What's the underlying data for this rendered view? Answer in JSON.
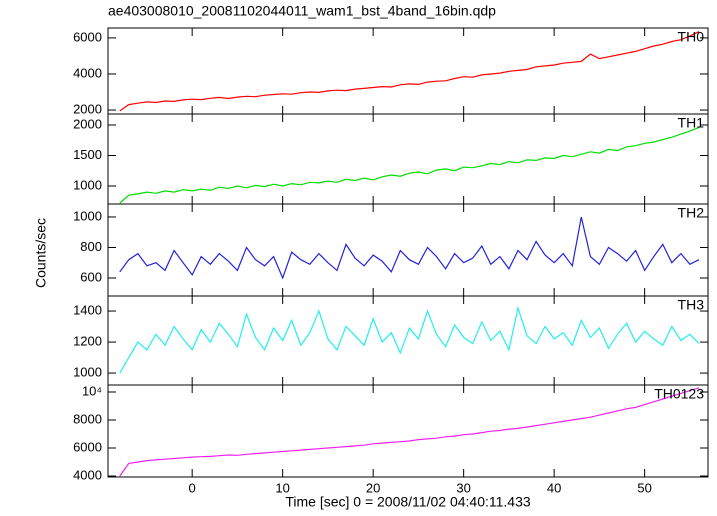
{
  "chart_data": [
    {
      "type": "line",
      "title": "ae403008010_20081102044011_wam1_bst_4band_16bin.qdp",
      "label": "TH0",
      "color": "#ff0000",
      "x": [
        -8,
        -7,
        -6,
        -5,
        -4,
        -3,
        -2,
        -1,
        0,
        1,
        2,
        3,
        4,
        5,
        6,
        7,
        8,
        9,
        10,
        11,
        12,
        13,
        14,
        15,
        16,
        17,
        18,
        19,
        20,
        21,
        22,
        23,
        24,
        25,
        26,
        27,
        28,
        29,
        30,
        31,
        32,
        33,
        34,
        35,
        36,
        37,
        38,
        39,
        40,
        41,
        42,
        43,
        44,
        45,
        46,
        47,
        48,
        49,
        50,
        51,
        52,
        53,
        54,
        55,
        56
      ],
      "values": [
        1950,
        2300,
        2380,
        2450,
        2420,
        2500,
        2480,
        2560,
        2600,
        2580,
        2650,
        2700,
        2640,
        2720,
        2760,
        2740,
        2820,
        2860,
        2900,
        2880,
        2960,
        3000,
        2980,
        3060,
        3100,
        3080,
        3160,
        3200,
        3250,
        3300,
        3280,
        3400,
        3450,
        3420,
        3550,
        3600,
        3620,
        3750,
        3850,
        3820,
        3950,
        4000,
        4050,
        4150,
        4200,
        4250,
        4400,
        4450,
        4500,
        4600,
        4650,
        4700,
        5100,
        4850,
        4950,
        5050,
        5150,
        5250,
        5400,
        5550,
        5650,
        5800,
        5900,
        6100,
        6350
      ],
      "xlim": [
        -9.3,
        57
      ],
      "ylim": [
        1780,
        6550
      ],
      "yticks": [
        2000,
        4000,
        6000
      ]
    },
    {
      "type": "line",
      "label": "TH1",
      "color": "#00dd00",
      "x": [
        -8,
        -7,
        -6,
        -5,
        -4,
        -3,
        -2,
        -1,
        0,
        1,
        2,
        3,
        4,
        5,
        6,
        7,
        8,
        9,
        10,
        11,
        12,
        13,
        14,
        15,
        16,
        17,
        18,
        19,
        20,
        21,
        22,
        23,
        24,
        25,
        26,
        27,
        28,
        29,
        30,
        31,
        32,
        33,
        34,
        35,
        36,
        37,
        38,
        39,
        40,
        41,
        42,
        43,
        44,
        45,
        46,
        47,
        48,
        49,
        50,
        51,
        52,
        53,
        54,
        55,
        56
      ],
      "values": [
        720,
        850,
        870,
        900,
        880,
        920,
        900,
        940,
        920,
        950,
        930,
        980,
        960,
        1000,
        970,
        1010,
        990,
        1030,
        1000,
        1040,
        1020,
        1060,
        1050,
        1080,
        1060,
        1110,
        1090,
        1130,
        1100,
        1150,
        1180,
        1160,
        1210,
        1230,
        1200,
        1260,
        1280,
        1250,
        1310,
        1300,
        1330,
        1370,
        1350,
        1400,
        1380,
        1430,
        1420,
        1460,
        1450,
        1500,
        1480,
        1520,
        1560,
        1540,
        1600,
        1580,
        1640,
        1660,
        1700,
        1720,
        1760,
        1800,
        1850,
        1900,
        1960
      ],
      "xlim": [
        -9.3,
        57
      ],
      "ylim": [
        705,
        2180
      ],
      "yticks": [
        1000,
        1500,
        2000
      ]
    },
    {
      "type": "line",
      "label": "TH2",
      "color": "#2222dd",
      "ylabel": "Counts/sec",
      "x": [
        -8,
        -7,
        -6,
        -5,
        -4,
        -3,
        -2,
        -1,
        0,
        1,
        2,
        3,
        4,
        5,
        6,
        7,
        8,
        9,
        10,
        11,
        12,
        13,
        14,
        15,
        16,
        17,
        18,
        19,
        20,
        21,
        22,
        23,
        24,
        25,
        26,
        27,
        28,
        29,
        30,
        31,
        32,
        33,
        34,
        35,
        36,
        37,
        38,
        39,
        40,
        41,
        42,
        43,
        44,
        45,
        46,
        47,
        48,
        49,
        50,
        51,
        52,
        53,
        54,
        55,
        56
      ],
      "values": [
        640,
        720,
        760,
        680,
        700,
        650,
        780,
        700,
        620,
        740,
        690,
        760,
        710,
        650,
        800,
        720,
        680,
        740,
        600,
        770,
        720,
        690,
        760,
        700,
        650,
        820,
        730,
        680,
        750,
        710,
        640,
        780,
        720,
        690,
        800,
        740,
        660,
        760,
        700,
        730,
        810,
        690,
        740,
        660,
        780,
        720,
        840,
        750,
        700,
        760,
        680,
        1000,
        740,
        690,
        800,
        760,
        710,
        780,
        650,
        740,
        820,
        700,
        760,
        690,
        720
      ],
      "xlim": [
        -9.3,
        57
      ],
      "ylim": [
        482,
        1085
      ],
      "yticks": [
        600,
        800,
        1000
      ]
    },
    {
      "type": "line",
      "label": "TH3",
      "color": "#22eeee",
      "x": [
        -8,
        -7,
        -6,
        -5,
        -4,
        -3,
        -2,
        -1,
        0,
        1,
        2,
        3,
        4,
        5,
        6,
        7,
        8,
        9,
        10,
        11,
        12,
        13,
        14,
        15,
        16,
        17,
        18,
        19,
        20,
        21,
        22,
        23,
        24,
        25,
        26,
        27,
        28,
        29,
        30,
        31,
        32,
        33,
        34,
        35,
        36,
        37,
        38,
        39,
        40,
        41,
        42,
        43,
        44,
        45,
        46,
        47,
        48,
        49,
        50,
        51,
        52,
        53,
        54,
        55,
        56
      ],
      "values": [
        1000,
        1100,
        1200,
        1150,
        1250,
        1180,
        1300,
        1220,
        1150,
        1280,
        1200,
        1320,
        1250,
        1170,
        1380,
        1230,
        1150,
        1290,
        1210,
        1340,
        1180,
        1260,
        1400,
        1220,
        1150,
        1300,
        1240,
        1180,
        1350,
        1200,
        1260,
        1130,
        1290,
        1220,
        1400,
        1250,
        1170,
        1310,
        1230,
        1190,
        1330,
        1210,
        1270,
        1150,
        1420,
        1240,
        1190,
        1300,
        1220,
        1260,
        1180,
        1340,
        1230,
        1290,
        1160,
        1250,
        1320,
        1200,
        1270,
        1220,
        1180,
        1300,
        1210,
        1250,
        1190
      ],
      "xlim": [
        -9.3,
        57
      ],
      "ylim": [
        923,
        1497
      ],
      "yticks": [
        1000,
        1200,
        1400
      ]
    },
    {
      "type": "line",
      "label": "TH0123",
      "color": "#ee22ee",
      "xlabel": "Time [sec] 0 = 2008/11/02 04:40:11.433",
      "x": [
        -8,
        -7,
        -6,
        -5,
        -4,
        -3,
        -2,
        -1,
        0,
        1,
        2,
        3,
        4,
        5,
        6,
        7,
        8,
        9,
        10,
        11,
        12,
        13,
        14,
        15,
        16,
        17,
        18,
        19,
        20,
        21,
        22,
        23,
        24,
        25,
        26,
        27,
        28,
        29,
        30,
        31,
        32,
        33,
        34,
        35,
        36,
        37,
        38,
        39,
        40,
        41,
        42,
        43,
        44,
        45,
        46,
        47,
        48,
        49,
        50,
        51,
        52,
        53,
        54,
        55,
        56
      ],
      "values": [
        4000,
        4900,
        5000,
        5100,
        5150,
        5200,
        5250,
        5300,
        5350,
        5380,
        5400,
        5450,
        5500,
        5480,
        5550,
        5600,
        5650,
        5700,
        5750,
        5800,
        5850,
        5900,
        5950,
        6000,
        6050,
        6100,
        6150,
        6200,
        6300,
        6350,
        6400,
        6450,
        6500,
        6600,
        6650,
        6700,
        6800,
        6850,
        6950,
        7000,
        7100,
        7200,
        7250,
        7350,
        7400,
        7500,
        7600,
        7700,
        7800,
        7900,
        8000,
        8100,
        8200,
        8350,
        8500,
        8650,
        8800,
        8900,
        9100,
        9300,
        9500,
        9700,
        9900,
        10100,
        10300
      ],
      "xlim": [
        -9.3,
        57
      ],
      "ylim": [
        3930,
        10500
      ],
      "yticks": [
        4000,
        6000,
        8000,
        {
          "value": 10000,
          "label": "10⁴"
        }
      ],
      "xticks": [
        0,
        10,
        20,
        30,
        40,
        50
      ]
    }
  ]
}
